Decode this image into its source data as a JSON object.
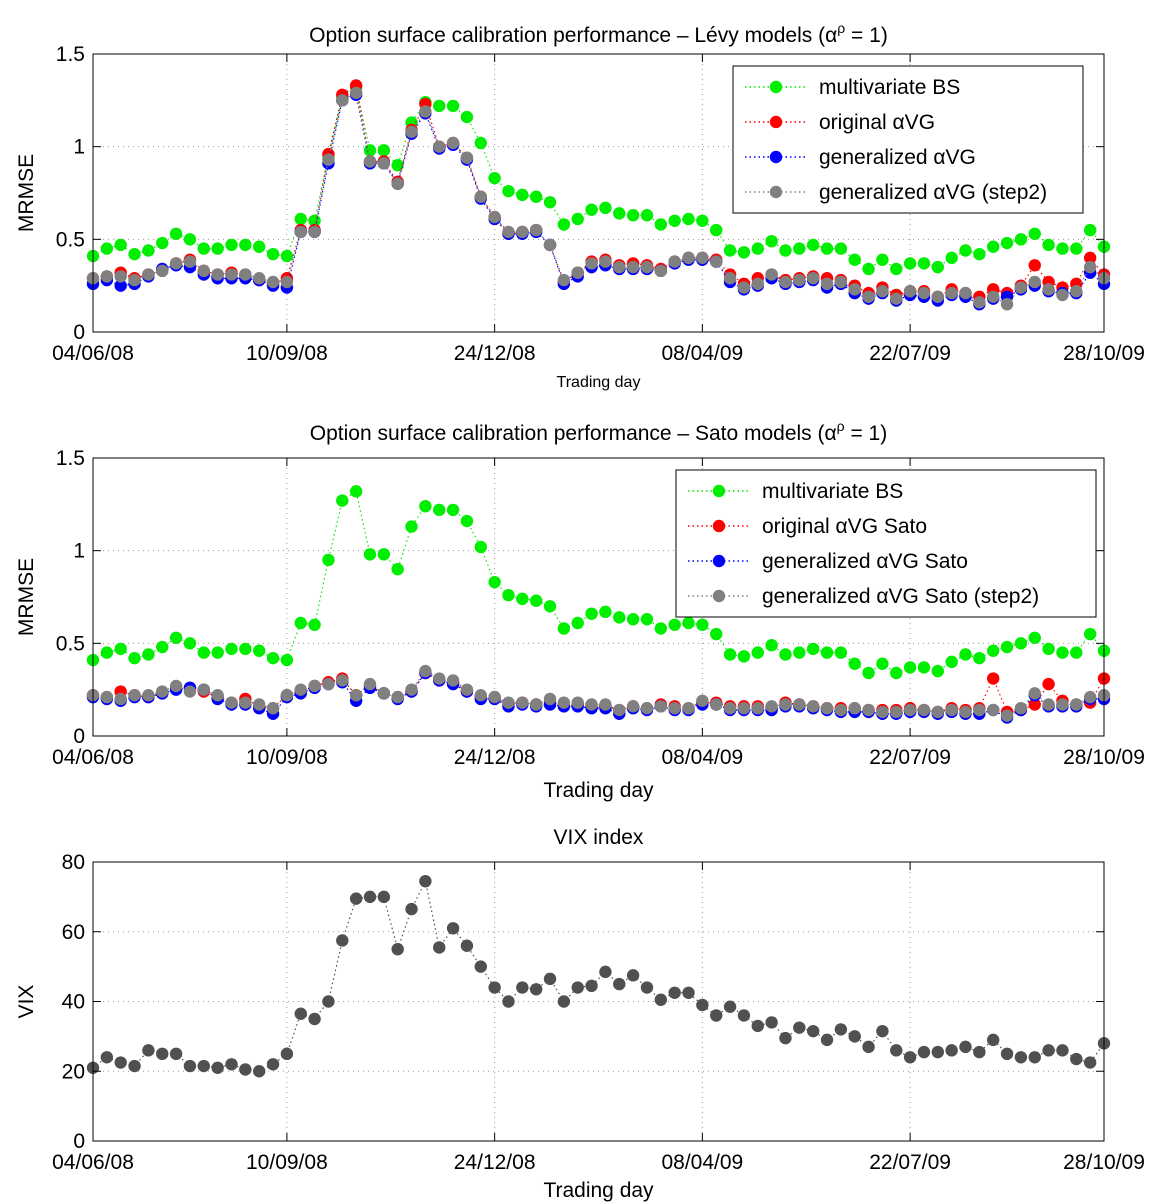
{
  "chart_data": [
    {
      "type": "scatter",
      "title": "Option surface calibration performance – Lévy models (α",
      "title_sup": "ρ",
      "title_suffix": " = 1)",
      "xlabel": "Trading day",
      "ylabel": "MRMSE",
      "ylim": [
        0,
        1.5
      ],
      "yticks": [
        0,
        0.5,
        1,
        1.5
      ],
      "ytick_labels": [
        "0",
        "0.5",
        "1",
        "1.5"
      ],
      "xticks": [
        0,
        14,
        29,
        44,
        59,
        73
      ],
      "xtick_labels": [
        "04/06/08",
        "10/09/08",
        "24/12/08",
        "08/04/09",
        "22/07/09",
        "28/10/09"
      ],
      "xlim": [
        0,
        73
      ],
      "grid": true,
      "legend_position": "top-right",
      "series": [
        {
          "name": "multivariate BS",
          "color": "#00ee00",
          "values": [
            0.41,
            0.45,
            0.47,
            0.42,
            0.44,
            0.48,
            0.53,
            0.5,
            0.45,
            0.45,
            0.47,
            0.47,
            0.46,
            0.42,
            0.41,
            0.61,
            0.6,
            0.95,
            1.27,
            1.32,
            0.98,
            0.98,
            0.9,
            1.13,
            1.24,
            1.22,
            1.22,
            1.16,
            1.02,
            0.83,
            0.76,
            0.74,
            0.73,
            0.7,
            0.58,
            0.61,
            0.66,
            0.67,
            0.64,
            0.63,
            0.63,
            0.58,
            0.6,
            0.61,
            0.6,
            0.55,
            0.44,
            0.43,
            0.45,
            0.49,
            0.44,
            0.45,
            0.47,
            0.45,
            0.45,
            0.39,
            0.34,
            0.39,
            0.34,
            0.37,
            0.37,
            0.35,
            0.4,
            0.44,
            0.42,
            0.46,
            0.48,
            0.5,
            0.53,
            0.47,
            0.45,
            0.45,
            0.55,
            0.46
          ]
        },
        {
          "name": "original αVG",
          "color": "#ff0000",
          "values": [
            0.29,
            0.3,
            0.32,
            0.29,
            0.31,
            0.33,
            0.37,
            0.39,
            0.33,
            0.31,
            0.32,
            0.31,
            0.28,
            0.26,
            0.29,
            0.55,
            0.55,
            0.96,
            1.28,
            1.33,
            0.92,
            0.92,
            0.81,
            1.09,
            1.23,
            1.0,
            1.02,
            0.94,
            0.73,
            0.62,
            0.53,
            0.54,
            0.55,
            0.47,
            0.27,
            0.32,
            0.38,
            0.39,
            0.36,
            0.37,
            0.36,
            0.34,
            0.38,
            0.4,
            0.4,
            0.39,
            0.31,
            0.26,
            0.29,
            0.31,
            0.28,
            0.29,
            0.3,
            0.29,
            0.28,
            0.25,
            0.21,
            0.24,
            0.2,
            0.22,
            0.22,
            0.19,
            0.23,
            0.21,
            0.19,
            0.23,
            0.21,
            0.25,
            0.36,
            0.27,
            0.24,
            0.26,
            0.4,
            0.31
          ]
        },
        {
          "name": "generalized αVG",
          "color": "#0000ff",
          "values": [
            0.26,
            0.28,
            0.25,
            0.26,
            0.3,
            0.34,
            0.36,
            0.35,
            0.31,
            0.29,
            0.29,
            0.29,
            0.28,
            0.25,
            0.24,
            0.54,
            0.54,
            0.91,
            1.25,
            1.28,
            0.91,
            0.91,
            0.8,
            1.07,
            1.18,
            0.99,
            1.01,
            0.93,
            0.72,
            0.61,
            0.53,
            0.53,
            0.54,
            0.47,
            0.26,
            0.3,
            0.35,
            0.36,
            0.34,
            0.34,
            0.34,
            0.33,
            0.37,
            0.39,
            0.39,
            0.38,
            0.27,
            0.23,
            0.25,
            0.29,
            0.26,
            0.27,
            0.28,
            0.24,
            0.26,
            0.21,
            0.18,
            0.21,
            0.17,
            0.2,
            0.19,
            0.17,
            0.2,
            0.19,
            0.15,
            0.18,
            0.19,
            0.23,
            0.25,
            0.22,
            0.21,
            0.21,
            0.32,
            0.26
          ]
        },
        {
          "name": "generalized αVG (step2)",
          "color": "#808080",
          "values": [
            0.29,
            0.3,
            0.3,
            0.28,
            0.31,
            0.33,
            0.37,
            0.38,
            0.33,
            0.31,
            0.31,
            0.31,
            0.29,
            0.27,
            0.27,
            0.54,
            0.54,
            0.93,
            1.25,
            1.29,
            0.92,
            0.91,
            0.8,
            1.08,
            1.19,
            1.0,
            1.02,
            0.94,
            0.73,
            0.62,
            0.54,
            0.54,
            0.55,
            0.47,
            0.28,
            0.32,
            0.37,
            0.38,
            0.35,
            0.35,
            0.35,
            0.33,
            0.38,
            0.4,
            0.4,
            0.38,
            0.29,
            0.24,
            0.26,
            0.31,
            0.27,
            0.28,
            0.29,
            0.26,
            0.27,
            0.23,
            0.19,
            0.22,
            0.18,
            0.22,
            0.21,
            0.19,
            0.21,
            0.21,
            0.16,
            0.19,
            0.15,
            0.24,
            0.27,
            0.23,
            0.2,
            0.22,
            0.35,
            0.29
          ]
        }
      ]
    },
    {
      "type": "scatter",
      "title": "Option surface calibration performance – Sato models (α",
      "title_sup": "ρ",
      "title_suffix": " = 1)",
      "xlabel": "Trading day",
      "ylabel": "MRMSE",
      "ylim": [
        0,
        1.5
      ],
      "yticks": [
        0,
        0.5,
        1,
        1.5
      ],
      "ytick_labels": [
        "0",
        "0.5",
        "1",
        "1.5"
      ],
      "xticks": [
        0,
        14,
        29,
        44,
        59,
        73
      ],
      "xtick_labels": [
        "04/06/08",
        "10/09/08",
        "24/12/08",
        "08/04/09",
        "22/07/09",
        "28/10/09"
      ],
      "xlim": [
        0,
        73
      ],
      "grid": true,
      "legend_position": "top-right",
      "series": [
        {
          "name": "multivariate BS",
          "color": "#00ee00",
          "values": [
            0.41,
            0.45,
            0.47,
            0.42,
            0.44,
            0.48,
            0.53,
            0.5,
            0.45,
            0.45,
            0.47,
            0.47,
            0.46,
            0.42,
            0.41,
            0.61,
            0.6,
            0.95,
            1.27,
            1.32,
            0.98,
            0.98,
            0.9,
            1.13,
            1.24,
            1.22,
            1.22,
            1.16,
            1.02,
            0.83,
            0.76,
            0.74,
            0.73,
            0.7,
            0.58,
            0.61,
            0.66,
            0.67,
            0.64,
            0.63,
            0.63,
            0.58,
            0.6,
            0.61,
            0.6,
            0.55,
            0.44,
            0.43,
            0.45,
            0.49,
            0.44,
            0.45,
            0.47,
            0.45,
            0.45,
            0.39,
            0.34,
            0.39,
            0.34,
            0.37,
            0.37,
            0.35,
            0.4,
            0.44,
            0.42,
            0.46,
            0.48,
            0.5,
            0.53,
            0.47,
            0.45,
            0.45,
            0.55,
            0.46
          ]
        },
        {
          "name": "original αVG Sato",
          "color": "#ff0000",
          "values": [
            0.22,
            0.21,
            0.24,
            0.22,
            0.21,
            0.23,
            0.26,
            0.26,
            0.24,
            0.21,
            0.18,
            0.2,
            0.16,
            0.15,
            0.22,
            0.24,
            0.27,
            0.29,
            0.31,
            0.22,
            0.27,
            0.23,
            0.21,
            0.24,
            0.34,
            0.3,
            0.29,
            0.24,
            0.21,
            0.21,
            0.17,
            0.18,
            0.17,
            0.18,
            0.17,
            0.17,
            0.16,
            0.16,
            0.14,
            0.16,
            0.15,
            0.17,
            0.16,
            0.15,
            0.18,
            0.18,
            0.16,
            0.16,
            0.16,
            0.15,
            0.18,
            0.17,
            0.16,
            0.15,
            0.15,
            0.15,
            0.14,
            0.14,
            0.14,
            0.15,
            0.14,
            0.13,
            0.15,
            0.14,
            0.15,
            0.31,
            0.13,
            0.14,
            0.17,
            0.28,
            0.19,
            0.17,
            0.18,
            0.31
          ]
        },
        {
          "name": "generalized αVG Sato",
          "color": "#0000ff",
          "values": [
            0.21,
            0.2,
            0.19,
            0.21,
            0.21,
            0.23,
            0.25,
            0.26,
            0.25,
            0.2,
            0.17,
            0.17,
            0.15,
            0.12,
            0.21,
            0.23,
            0.26,
            0.28,
            0.29,
            0.19,
            0.26,
            0.23,
            0.2,
            0.24,
            0.34,
            0.3,
            0.28,
            0.24,
            0.2,
            0.2,
            0.16,
            0.17,
            0.16,
            0.17,
            0.16,
            0.16,
            0.15,
            0.15,
            0.12,
            0.15,
            0.14,
            0.16,
            0.14,
            0.14,
            0.17,
            0.17,
            0.14,
            0.14,
            0.14,
            0.14,
            0.16,
            0.16,
            0.15,
            0.14,
            0.13,
            0.13,
            0.13,
            0.12,
            0.12,
            0.13,
            0.13,
            0.12,
            0.13,
            0.12,
            0.12,
            0.14,
            0.1,
            0.14,
            0.22,
            0.16,
            0.16,
            0.16,
            0.2,
            0.2
          ]
        },
        {
          "name": "generalized αVG Sato (step2)",
          "color": "#808080",
          "values": [
            0.22,
            0.21,
            0.2,
            0.22,
            0.22,
            0.24,
            0.27,
            0.24,
            0.25,
            0.22,
            0.18,
            0.18,
            0.17,
            0.15,
            0.22,
            0.25,
            0.27,
            0.28,
            0.3,
            0.22,
            0.28,
            0.23,
            0.21,
            0.25,
            0.35,
            0.31,
            0.3,
            0.25,
            0.22,
            0.21,
            0.18,
            0.18,
            0.17,
            0.2,
            0.18,
            0.18,
            0.17,
            0.17,
            0.14,
            0.16,
            0.15,
            0.16,
            0.15,
            0.15,
            0.19,
            0.17,
            0.15,
            0.15,
            0.15,
            0.16,
            0.17,
            0.17,
            0.16,
            0.15,
            0.14,
            0.15,
            0.14,
            0.13,
            0.13,
            0.14,
            0.14,
            0.13,
            0.14,
            0.13,
            0.14,
            0.14,
            0.11,
            0.15,
            0.23,
            0.17,
            0.17,
            0.17,
            0.21,
            0.22
          ]
        }
      ]
    },
    {
      "type": "scatter",
      "title": "VIX index",
      "xlabel": "Trading day",
      "ylabel": "VIX",
      "ylim": [
        0,
        80
      ],
      "yticks": [
        0,
        20,
        40,
        60,
        80
      ],
      "ytick_labels": [
        "0",
        "20",
        "40",
        "60",
        "80"
      ],
      "xticks": [
        0,
        14,
        29,
        44,
        59,
        73
      ],
      "xtick_labels": [
        "04/06/08",
        "10/09/08",
        "24/12/08",
        "08/04/09",
        "22/07/09",
        "28/10/09"
      ],
      "xlim": [
        0,
        73
      ],
      "grid": true,
      "series": [
        {
          "color": "#505050",
          "values": [
            21,
            24,
            22.5,
            21.5,
            26,
            25,
            25,
            21.5,
            21.5,
            21,
            22,
            20.5,
            20,
            22,
            25,
            36.5,
            35,
            40,
            57.5,
            69.5,
            70,
            70,
            55,
            66.5,
            74.5,
            55.5,
            61,
            56,
            50,
            44,
            40,
            44,
            43.5,
            46.5,
            40,
            44,
            44.5,
            48.5,
            45,
            47.5,
            44,
            40.5,
            42.5,
            42.5,
            39,
            36,
            38.5,
            36,
            33,
            34,
            29.5,
            32.5,
            31.5,
            29,
            32,
            30,
            27,
            31.5,
            26,
            24,
            25.5,
            25.5,
            26,
            27,
            25.5,
            29,
            25,
            24,
            24,
            26,
            26,
            23.5,
            22.5,
            28
          ]
        }
      ]
    }
  ]
}
